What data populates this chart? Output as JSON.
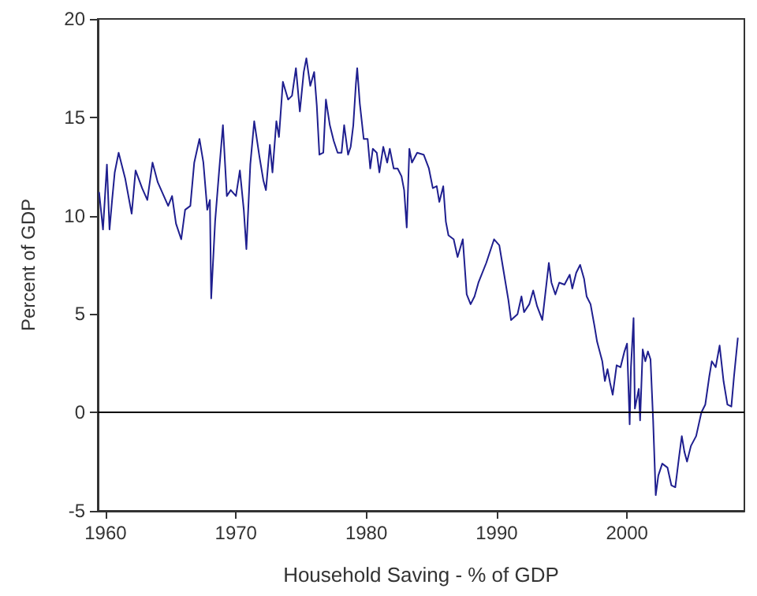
{
  "chart_data": {
    "type": "line",
    "xlabel": "Household Saving - % of GDP",
    "ylabel": "Percent of GDP",
    "xlim": [
      1959.4,
      2009
    ],
    "xticks": [
      1960,
      1970,
      1980,
      1990,
      2000
    ],
    "ylim": [
      -5,
      20
    ],
    "yticks": [
      -5,
      0,
      5,
      10,
      15,
      20
    ],
    "grid": false,
    "marker": "none",
    "line_style": "solid",
    "ref_lines": [
      {
        "axis": "y",
        "value": 0,
        "color": "#000000"
      }
    ],
    "series": [
      {
        "color": "#1f1f8f",
        "x": [
          1959.5,
          1959.8,
          1960.1,
          1960.3,
          1960.5,
          1960.7,
          1961.0,
          1961.5,
          1962.0,
          1962.3,
          1962.8,
          1963.2,
          1963.6,
          1964.0,
          1964.4,
          1964.8,
          1965.1,
          1965.4,
          1965.8,
          1966.1,
          1966.5,
          1966.8,
          1967.2,
          1967.5,
          1967.8,
          1968.0,
          1968.1,
          1968.4,
          1968.7,
          1969.0,
          1969.3,
          1969.6,
          1970.0,
          1970.3,
          1970.6,
          1970.8,
          1971.1,
          1971.4,
          1971.8,
          1972.1,
          1972.3,
          1972.6,
          1972.8,
          1973.1,
          1973.3,
          1973.6,
          1974.0,
          1974.3,
          1974.6,
          1974.9,
          1975.2,
          1975.4,
          1975.7,
          1976.0,
          1976.2,
          1976.4,
          1976.7,
          1976.9,
          1977.2,
          1977.5,
          1977.8,
          1978.1,
          1978.3,
          1978.6,
          1978.8,
          1979.0,
          1979.2,
          1979.3,
          1979.5,
          1979.8,
          1980.1,
          1980.3,
          1980.5,
          1980.8,
          1981.0,
          1981.3,
          1981.6,
          1981.8,
          1982.1,
          1982.4,
          1982.7,
          1982.9,
          1983.1,
          1983.3,
          1983.5,
          1983.9,
          1984.4,
          1984.8,
          1985.1,
          1985.4,
          1985.6,
          1985.9,
          1986.1,
          1986.3,
          1986.7,
          1987.0,
          1987.4,
          1987.7,
          1988.0,
          1988.3,
          1988.6,
          1989.2,
          1989.8,
          1990.2,
          1990.5,
          1990.9,
          1991.1,
          1991.6,
          1991.9,
          1992.1,
          1992.5,
          1992.8,
          1993.1,
          1993.5,
          1994.0,
          1994.2,
          1994.5,
          1994.8,
          1995.2,
          1995.6,
          1995.8,
          1996.1,
          1996.4,
          1996.7,
          1996.9,
          1997.2,
          1997.5,
          1997.7,
          1998.1,
          1998.3,
          1998.5,
          1998.7,
          1998.9,
          1999.2,
          1999.5,
          1999.8,
          2000.0,
          2000.2,
          2000.3,
          2000.5,
          2000.6,
          2000.9,
          2001.0,
          2001.2,
          2001.4,
          2001.6,
          2001.8,
          2002.0,
          2002.2,
          2002.4,
          2002.7,
          2003.1,
          2003.4,
          2003.7,
          2004.0,
          2004.2,
          2004.4,
          2004.6,
          2004.9,
          2005.3,
          2005.7,
          2006.0,
          2006.3,
          2006.5,
          2006.8,
          2007.1,
          2007.4,
          2007.7,
          2008.0,
          2008.2,
          2008.5
        ],
        "values": [
          11.2,
          9.3,
          12.6,
          9.3,
          10.8,
          12.2,
          13.2,
          11.9,
          10.1,
          12.3,
          11.4,
          10.8,
          12.7,
          11.7,
          11.1,
          10.5,
          11.0,
          9.6,
          8.8,
          10.3,
          10.5,
          12.7,
          13.9,
          12.7,
          10.3,
          10.8,
          5.8,
          9.7,
          12.2,
          14.6,
          11.0,
          11.3,
          11.0,
          12.3,
          10.3,
          8.3,
          12.6,
          14.8,
          13.0,
          11.8,
          11.3,
          13.6,
          12.2,
          14.8,
          14.0,
          16.8,
          15.9,
          16.1,
          17.5,
          15.3,
          17.3,
          18.0,
          16.6,
          17.3,
          15.6,
          13.1,
          13.2,
          15.9,
          14.6,
          13.8,
          13.2,
          13.2,
          14.6,
          13.1,
          13.5,
          14.6,
          16.7,
          17.5,
          15.7,
          13.9,
          13.9,
          12.4,
          13.4,
          13.2,
          12.2,
          13.5,
          12.7,
          13.4,
          12.4,
          12.4,
          12.0,
          11.3,
          9.4,
          13.4,
          12.7,
          13.2,
          13.1,
          12.4,
          11.4,
          11.5,
          10.7,
          11.5,
          9.7,
          9.0,
          8.8,
          7.9,
          8.8,
          6.0,
          5.5,
          5.9,
          6.6,
          7.6,
          8.8,
          8.5,
          7.3,
          5.7,
          4.7,
          5.0,
          5.9,
          5.1,
          5.5,
          6.2,
          5.4,
          4.7,
          7.6,
          6.6,
          6.0,
          6.6,
          6.5,
          7.0,
          6.3,
          7.1,
          7.5,
          6.8,
          5.9,
          5.5,
          4.4,
          3.6,
          2.6,
          1.6,
          2.2,
          1.5,
          0.9,
          2.4,
          2.3,
          3.1,
          3.5,
          -0.6,
          2.3,
          4.8,
          0.2,
          1.2,
          -0.4,
          3.2,
          2.6,
          3.1,
          2.7,
          -0.4,
          -4.2,
          -3.2,
          -2.6,
          -2.8,
          -3.7,
          -3.8,
          -2.2,
          -1.2,
          -2.0,
          -2.5,
          -1.7,
          -1.2,
          0.0,
          0.4,
          1.8,
          2.6,
          2.3,
          3.4,
          1.6,
          0.4,
          0.3,
          1.8,
          3.8
        ]
      }
    ]
  }
}
